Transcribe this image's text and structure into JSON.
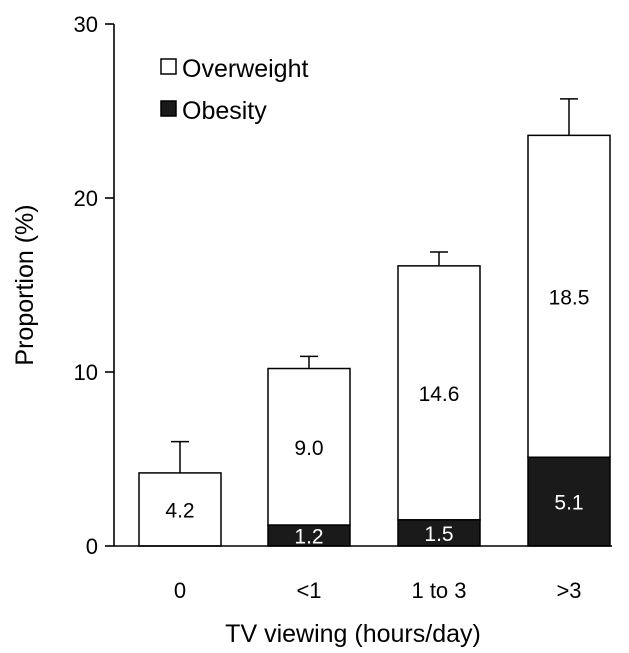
{
  "chart_data": {
    "type": "bar",
    "stacked": true,
    "title": "",
    "xlabel": "TV viewing (hours/day)",
    "ylabel": "Proportion (%)",
    "ylim": [
      0,
      30
    ],
    "yticks": [
      0,
      10,
      20,
      30
    ],
    "categories": [
      "0",
      "<1",
      "1 to 3",
      ">3"
    ],
    "series": [
      {
        "name": "Obesity",
        "color": "#1a1a1a",
        "values": [
          0,
          1.2,
          1.5,
          5.1
        ],
        "labels": [
          "",
          "1.2",
          "1.5",
          "5.1"
        ]
      },
      {
        "name": "Overweight",
        "color": "#ffffff",
        "values": [
          4.2,
          9.0,
          14.6,
          18.5
        ],
        "labels": [
          "4.2",
          "9.0",
          "14.6",
          "18.5"
        ]
      }
    ],
    "error_bars_upper": [
      6.0,
      10.9,
      16.9,
      25.7
    ],
    "legend": {
      "position": "top-left",
      "items": [
        {
          "label": "Overweight",
          "marker": "□",
          "color": "#ffffff"
        },
        {
          "label": "Obesity",
          "marker": "■",
          "color": "#1a1a1a"
        }
      ]
    },
    "grid": false
  }
}
